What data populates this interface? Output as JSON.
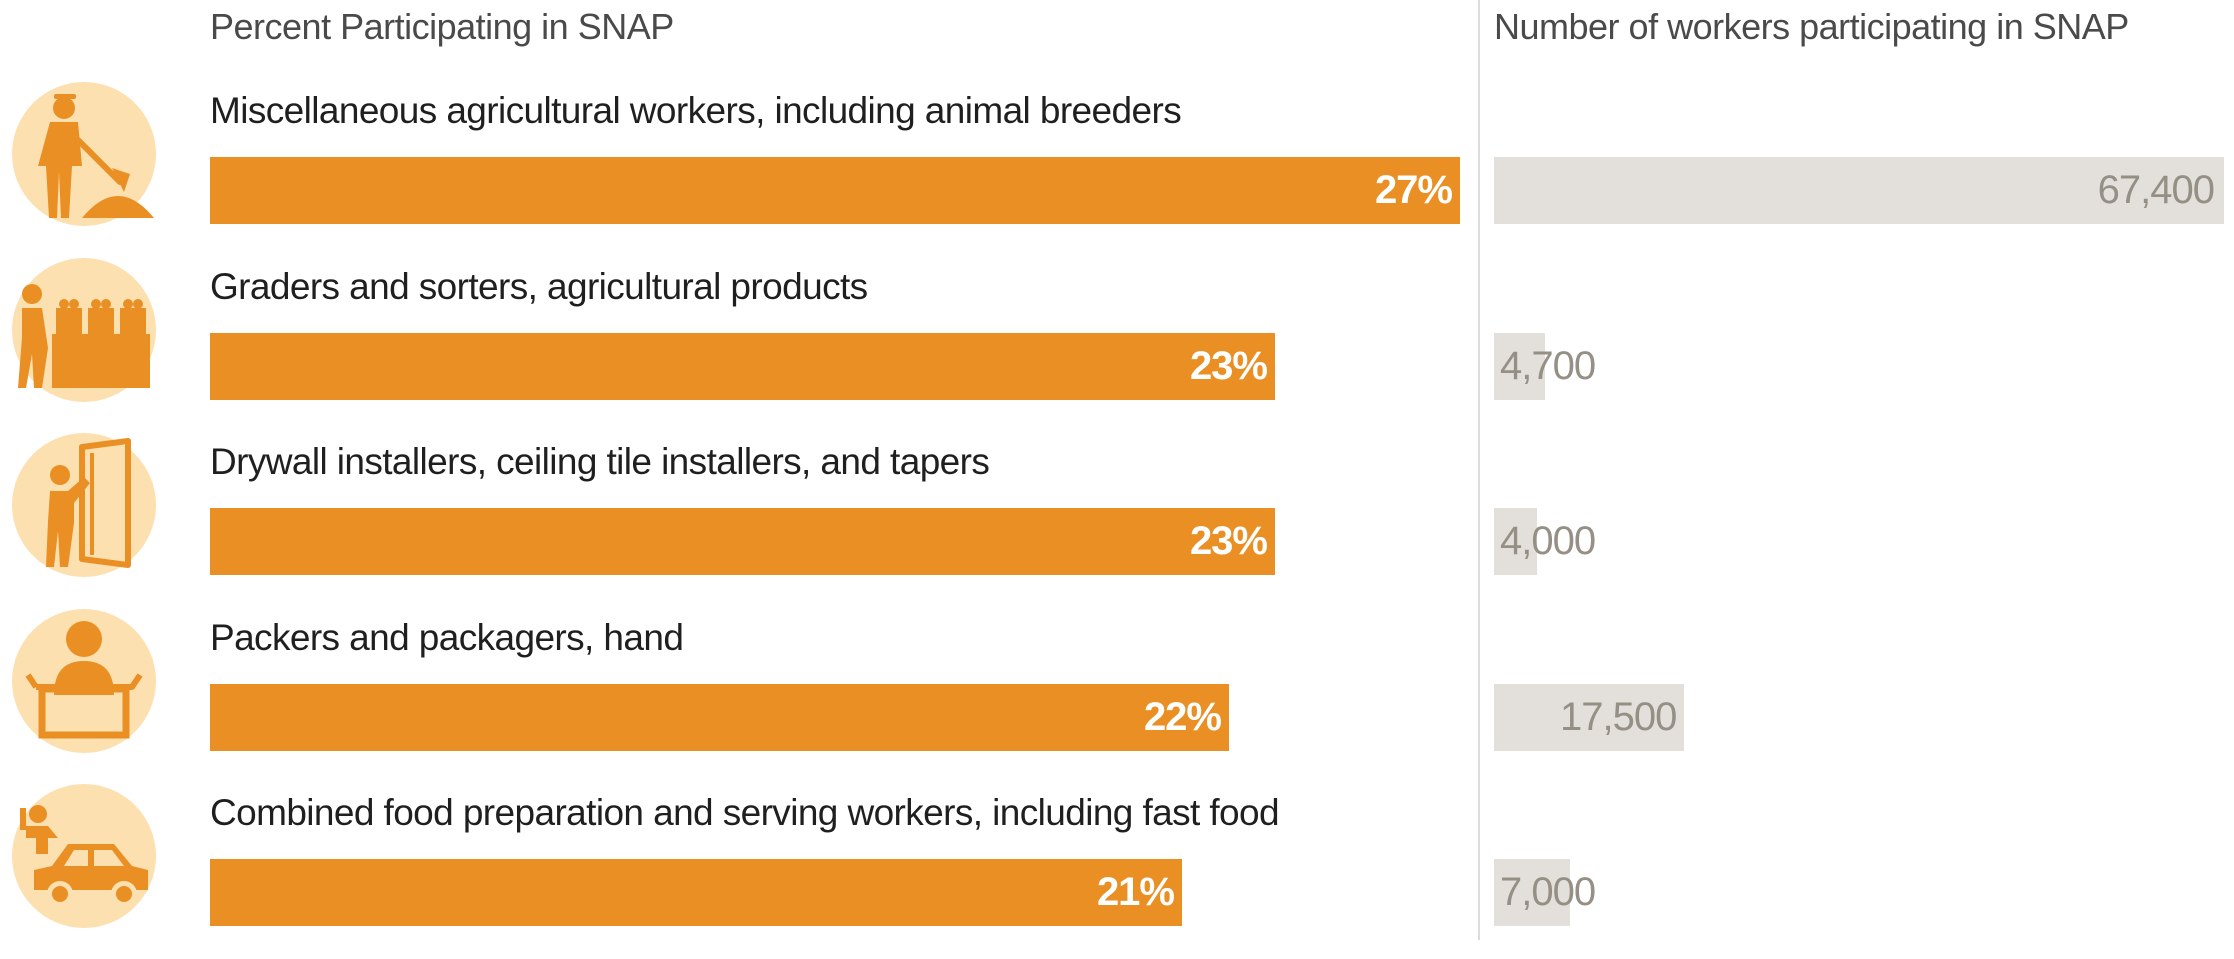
{
  "chart_data": {
    "type": "bar",
    "headers": {
      "left": "Percent Participating in SNAP",
      "right": "Number of workers participating in SNAP"
    },
    "categories": [
      "Miscellaneous agricultural workers, including animal breeders",
      "Graders and sorters, agricultural products",
      "Drywall installers, ceiling tile installers, and tapers",
      "Packers and packagers, hand",
      "Combined food preparation and serving workers, including fast food"
    ],
    "series": [
      {
        "name": "Percent Participating in SNAP",
        "values": [
          27,
          23,
          23,
          22,
          21
        ],
        "labels": [
          "27%",
          "23%",
          "23%",
          "22%",
          "21%"
        ]
      },
      {
        "name": "Number of workers participating in SNAP",
        "values": [
          67400,
          4700,
          4000,
          17500,
          7000
        ],
        "labels": [
          "67,400",
          "4,700",
          "4,000",
          "17,500",
          "7,000"
        ]
      }
    ],
    "icons": [
      "farm-worker-shovel-icon",
      "grader-sorter-crates-icon",
      "drywall-installer-icon",
      "packer-box-icon",
      "food-delivery-car-icon"
    ],
    "colors": {
      "percent_bar": "#ea8f24",
      "number_bar": "#e3e0db",
      "icon_circle": "#fde0b0",
      "icon_glyph": "#ea8f24"
    }
  }
}
